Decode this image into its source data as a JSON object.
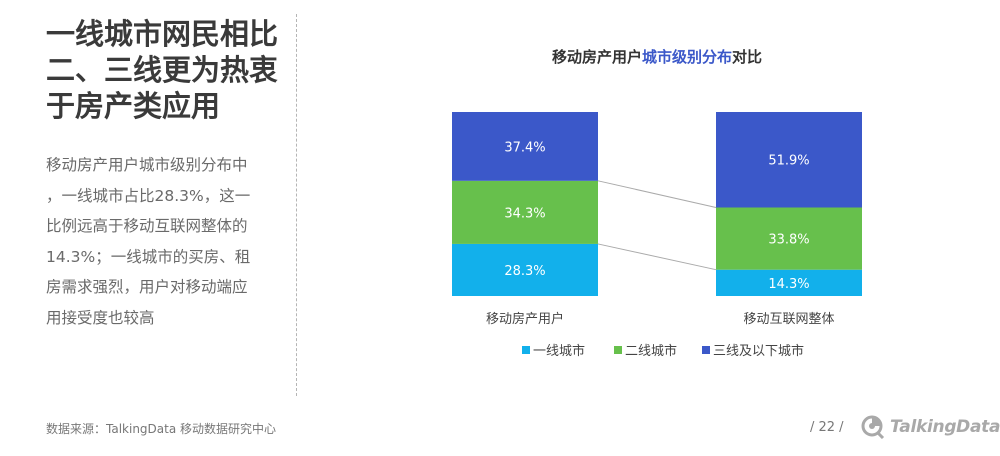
{
  "headline": [
    "一线城市网民相比",
    "二、三线更为热衷",
    "于房产类应用"
  ],
  "body_lines": [
    "移动房产用户城市级别分布中",
    "，一线城市占比28.3%，这一",
    "比例远高于移动互联网整体的",
    "14.3%；一线城市的买房、租",
    "房需求强烈，用户对移动端应",
    "用接受度也较高"
  ],
  "footer": {
    "source": "数据来源：TalkingData 移动数据研究中心",
    "page": "/  22  /",
    "brand": "TalkingData"
  },
  "chart_data": {
    "type": "bar",
    "stacked": true,
    "normalized": true,
    "title_parts": [
      "移动房产用户",
      "城市级别分布",
      "对比"
    ],
    "categories": [
      "移动房产用户",
      "移动互联网整体"
    ],
    "series": [
      {
        "name": "一线城市",
        "values": [
          28.3,
          14.3
        ],
        "color": "#12b0eb"
      },
      {
        "name": "二线城市",
        "values": [
          34.3,
          33.8
        ],
        "color": "#67c04c"
      },
      {
        "name": "三线及以下城市",
        "values": [
          37.4,
          51.9
        ],
        "color": "#3b58c9"
      }
    ],
    "value_suffix": "%",
    "legend_position": "bottom",
    "connector_lines": true,
    "colors": {
      "title_highlight": "#3b58c9",
      "title": "#333333",
      "label": "#ffffff",
      "connector": "#aaaaaa"
    }
  }
}
